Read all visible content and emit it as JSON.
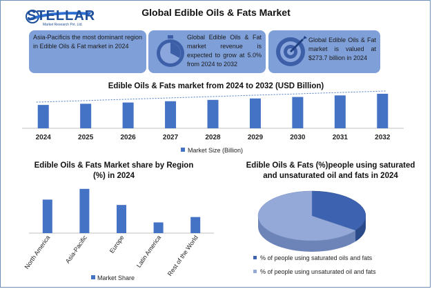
{
  "header": {
    "logo_text": "STELLAR",
    "logo_subtitle": "Market Research Pvt. Ltd.",
    "title": "Global Edible Oils & Fats  Market"
  },
  "cards": [
    {
      "text": "Asia-Pacificis the most dominant region in Edible Oils & Fat market in 2024",
      "icon": "none"
    },
    {
      "text": "Global Edible Oils & Fat market revenue is expected to grow at 5.0% from 2024 to 2032",
      "icon": "stopwatch-icon"
    },
    {
      "text": "Global Edible Oils & Fat market is valued at $273.7 billion in 2024",
      "icon": "target-icon"
    }
  ],
  "colors": {
    "bar": "#4472c4",
    "card": "#7f9fd9",
    "pie_dark": "#3d63b0",
    "pie_light": "#94a9d8",
    "trend": "#4a7ac8"
  },
  "chart_data": [
    {
      "type": "bar",
      "title": "Edible Oils & Fats  market from 2024 to 2032 (USD Billion)",
      "categories": [
        "2024",
        "2025",
        "2026",
        "2027",
        "2028",
        "2029",
        "2030",
        "2031",
        "2032"
      ],
      "series": [
        {
          "name": "Market Size (Billion)",
          "values": [
            273.7,
            287.4,
            301.8,
            316.9,
            332.7,
            349.3,
            366.8,
            385.1,
            404.4
          ]
        }
      ],
      "trendline": true,
      "legend": "bottom"
    },
    {
      "type": "bar",
      "title": "Edible Oils & Fats  Market share by Region (%) in 2024",
      "categories": [
        "North America",
        "Asia-Pacific",
        "Europe",
        "Latin America",
        "Rest of the World"
      ],
      "series": [
        {
          "name": "Market Share",
          "values": [
            25,
            33,
            21,
            8,
            12
          ]
        }
      ],
      "legend": "bottom"
    },
    {
      "type": "pie",
      "title": "Edible Oils & Fats  (%)people using saturated and unsaturated oil and fats in 2024",
      "labels": [
        "% of people using saturated oils and fats",
        "% of people using unsaturated oil and fats"
      ],
      "values": [
        35,
        65
      ],
      "legend": "bottom"
    }
  ]
}
